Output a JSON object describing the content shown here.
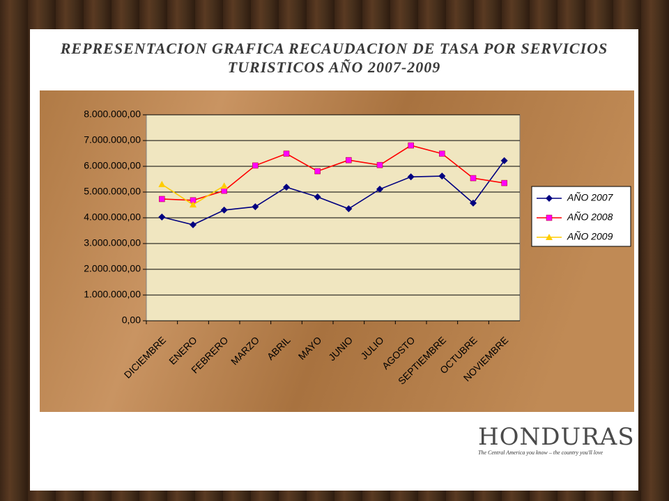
{
  "chart_data": {
    "type": "line",
    "title": "REPRESENTACION GRAFICA RECAUDACION DE TASA POR SERVICIOS TURISTICOS AÑO 2007-2009",
    "categories": [
      "DICIEMBRE",
      "ENERO",
      "FEBRERO",
      "MARZO",
      "ABRIL",
      "MAYO",
      "JUNIO",
      "JULIO",
      "AGOSTO",
      "SEPTIEMBRE",
      "OCTUBRE",
      "NOVIEMBRE"
    ],
    "series": [
      {
        "name": "AÑO 2007",
        "color": "#000080",
        "marker": "diamond",
        "marker_color": "#000080",
        "values": [
          4030000,
          3730000,
          4300000,
          4430000,
          5190000,
          4810000,
          4350000,
          5110000,
          5590000,
          5620000,
          4570000,
          6220000
        ]
      },
      {
        "name": "AÑO 2008",
        "color": "#ff0000",
        "marker": "square",
        "marker_color": "#ff00ff",
        "values": [
          4730000,
          4680000,
          5050000,
          6030000,
          6490000,
          5810000,
          6240000,
          6050000,
          6810000,
          6490000,
          5540000,
          5350000
        ]
      },
      {
        "name": "AÑO 2009",
        "color": "#ffcc00",
        "marker": "triangle",
        "marker_color": "#ffcc00",
        "values": [
          5300000,
          4510000,
          5240000,
          null,
          null,
          null,
          null,
          null,
          null,
          null,
          null,
          null
        ]
      }
    ],
    "ylim": [
      0,
      8000000
    ],
    "yticks": [
      {
        "value": 0,
        "label": "0,00"
      },
      {
        "value": 1000000,
        "label": "1.000.000,00"
      },
      {
        "value": 2000000,
        "label": "2.000.000,00"
      },
      {
        "value": 3000000,
        "label": "3.000.000,00"
      },
      {
        "value": 4000000,
        "label": "4.000.000,00"
      },
      {
        "value": 5000000,
        "label": "5.000.000,00"
      },
      {
        "value": 6000000,
        "label": "6.000.000,00"
      },
      {
        "value": 7000000,
        "label": "7.000.000,00"
      },
      {
        "value": 8000000,
        "label": "8.000.000,00"
      }
    ],
    "grid": true,
    "legend": "right"
  },
  "logo": {
    "name": "HONDURAS",
    "tagline": "The Central America you know – the country you'll love"
  }
}
